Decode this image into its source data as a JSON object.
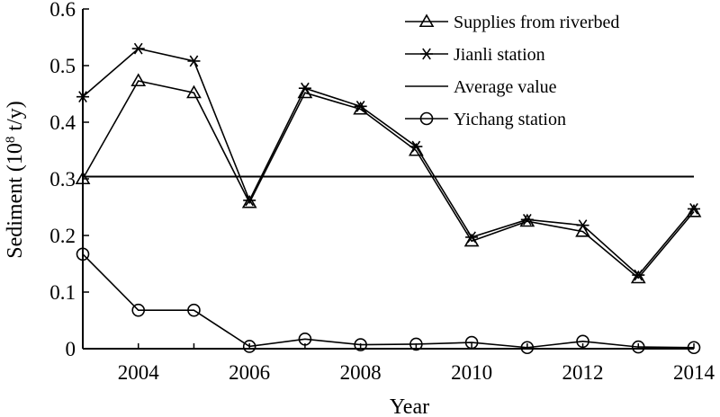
{
  "chart_data": {
    "type": "line",
    "xlabel": "Year",
    "ylabel": "Sediment (10⁸ t/y)",
    "ylabel_parts": {
      "pre": "Sediment (10",
      "sup": "8",
      "post": " t/y)"
    },
    "xlim": [
      2003,
      2014
    ],
    "ylim": [
      0,
      0.6
    ],
    "x": [
      2003,
      2004,
      2005,
      2006,
      2007,
      2008,
      2009,
      2010,
      2011,
      2012,
      2013,
      2014
    ],
    "x_tick_values": [
      2004,
      2006,
      2008,
      2010,
      2012,
      2014
    ],
    "x_tick_labels": [
      "2004",
      "2006",
      "2008",
      "2010",
      "2012",
      "2014"
    ],
    "y_tick_values": [
      0,
      0.1,
      0.2,
      0.3,
      0.4,
      0.5,
      0.6
    ],
    "y_tick_labels": [
      "0",
      "0.1",
      "0.2",
      "0.3",
      "0.4",
      "0.5",
      "0.6"
    ],
    "grid": false,
    "legend_position": "top-right",
    "series": [
      {
        "name": "Supplies from riverbed",
        "marker": "triangle",
        "color": "#000000",
        "values": [
          0.3,
          0.473,
          0.452,
          0.258,
          0.452,
          0.423,
          0.35,
          0.19,
          0.225,
          0.207,
          0.125,
          0.242
        ]
      },
      {
        "name": "Jianli station",
        "marker": "asterisk",
        "color": "#000000",
        "values": [
          0.445,
          0.53,
          0.508,
          0.262,
          0.46,
          0.428,
          0.357,
          0.197,
          0.228,
          0.218,
          0.13,
          0.247
        ]
      },
      {
        "name": "Average value",
        "marker": "none",
        "color": "#000000",
        "values": [
          0.304,
          0.304,
          0.304,
          0.304,
          0.304,
          0.304,
          0.304,
          0.304,
          0.304,
          0.304,
          0.304,
          0.304
        ]
      },
      {
        "name": "Yichang station",
        "marker": "circle",
        "color": "#000000",
        "values": [
          0.167,
          0.068,
          0.068,
          0.004,
          0.017,
          0.007,
          0.008,
          0.011,
          0.002,
          0.013,
          0.003,
          0.002
        ]
      }
    ]
  }
}
